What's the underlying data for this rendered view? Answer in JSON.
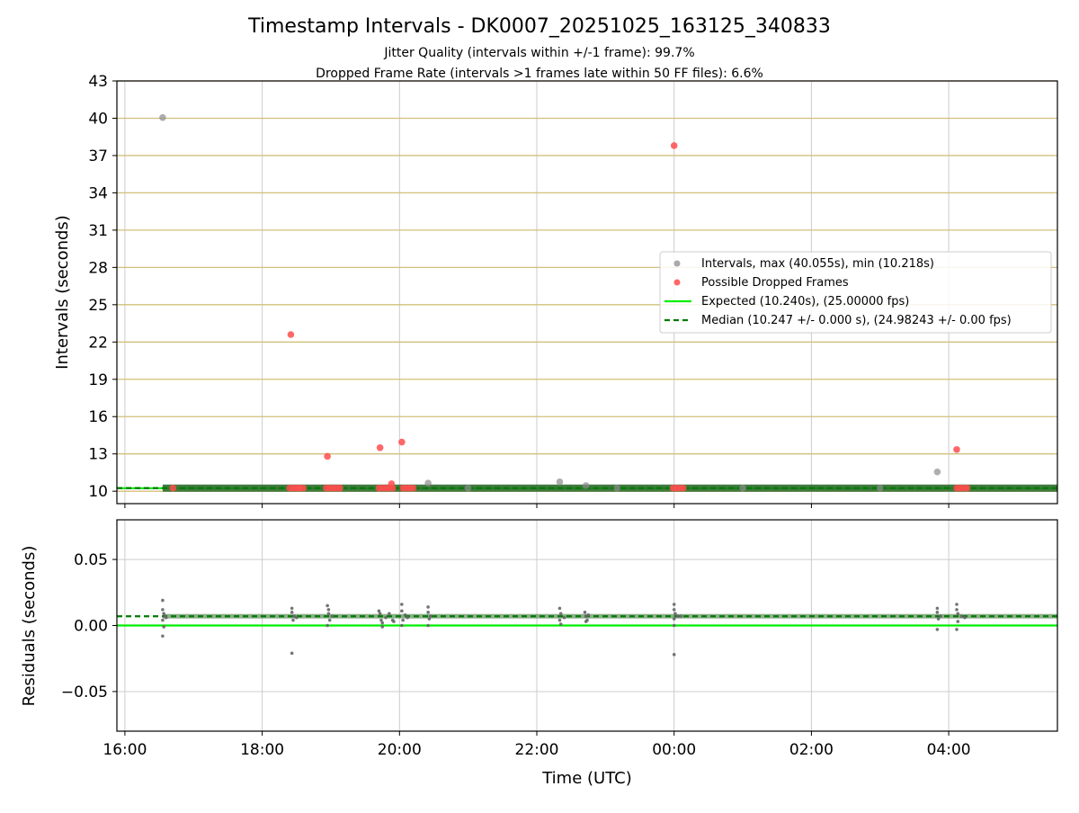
{
  "figure": {
    "title": "Timestamp Intervals - DK0007_20251025_163125_340833",
    "subtitle_1": "Jitter Quality (intervals within +/-1 frame): 99.7%",
    "subtitle_2": "Dropped Frame Rate (intervals >1 frames late within 50 FF files): 6.6%"
  },
  "chart_data": [
    {
      "type": "scatter",
      "panel": "intervals",
      "ylabel": "Intervals (seconds)",
      "ylim": [
        9,
        43
      ],
      "yticks": [
        10,
        13,
        16,
        19,
        22,
        25,
        28,
        31,
        34,
        37,
        40,
        43
      ],
      "grid": "vertical gray at x ticks, horizontal tan at y ticks",
      "legend_position": "center-right",
      "colors": {
        "intervals": "#8c8c8c",
        "dropped": "#ff4d4d",
        "expected": "#00ee00",
        "median": "#007a00",
        "band": "#2e6b2e",
        "hgrid": "#d2c07a",
        "vgrid": "#cccccc"
      },
      "legend": [
        {
          "key": "intervals",
          "label": "Intervals, max (40.055s), min (10.218s)"
        },
        {
          "key": "dropped",
          "label": "Possible Dropped Frames"
        },
        {
          "key": "expected",
          "label": "Expected (10.240s), (25.00000 fps)"
        },
        {
          "key": "median",
          "label": "Median (10.247 +/- 0.000 s), (24.98243 +/- 0.00 fps)"
        }
      ],
      "expected_interval": 10.24,
      "median_interval": 10.247,
      "series": [
        {
          "name": "Intervals, max (40.055s), min (10.218s)",
          "points": [
            {
              "x": "16:33",
              "y": 40.055
            },
            {
              "x": "20:25",
              "y": 10.65
            },
            {
              "x": "22:20",
              "y": 10.75
            },
            {
              "x": "22:43",
              "y": 10.45
            },
            {
              "x": "03:50",
              "y": 11.55
            },
            {
              "x": "18:32",
              "y": 10.25
            },
            {
              "x": "21:00",
              "y": 10.25
            },
            {
              "x": "23:10",
              "y": 10.25
            },
            {
              "x": "01:00",
              "y": 10.25
            },
            {
              "x": "03:00",
              "y": 10.25
            }
          ]
        },
        {
          "name": "Possible Dropped Frames",
          "points": [
            {
              "x": "18:25",
              "y": 22.6
            },
            {
              "x": "18:57",
              "y": 12.8
            },
            {
              "x": "19:43",
              "y": 13.5
            },
            {
              "x": "19:53",
              "y": 10.6
            },
            {
              "x": "20:02",
              "y": 13.95
            },
            {
              "x": "00:00",
              "y": 37.8
            },
            {
              "x": "04:07",
              "y": 13.35
            },
            {
              "x": "16:42",
              "y": 10.25
            },
            {
              "x": "18:24",
              "y": 10.25
            },
            {
              "x": "18:27",
              "y": 10.25
            },
            {
              "x": "18:30",
              "y": 10.25
            },
            {
              "x": "18:33",
              "y": 10.25
            },
            {
              "x": "18:36",
              "y": 10.25
            },
            {
              "x": "18:56",
              "y": 10.25
            },
            {
              "x": "18:59",
              "y": 10.25
            },
            {
              "x": "19:02",
              "y": 10.25
            },
            {
              "x": "19:05",
              "y": 10.25
            },
            {
              "x": "19:08",
              "y": 10.25
            },
            {
              "x": "19:42",
              "y": 10.25
            },
            {
              "x": "19:45",
              "y": 10.25
            },
            {
              "x": "19:48",
              "y": 10.25
            },
            {
              "x": "19:51",
              "y": 10.25
            },
            {
              "x": "19:54",
              "y": 10.25
            },
            {
              "x": "20:03",
              "y": 10.25
            },
            {
              "x": "20:06",
              "y": 10.25
            },
            {
              "x": "20:09",
              "y": 10.25
            },
            {
              "x": "20:12",
              "y": 10.25
            },
            {
              "x": "23:59",
              "y": 10.25
            },
            {
              "x": "00:02",
              "y": 10.25
            },
            {
              "x": "00:05",
              "y": 10.25
            },
            {
              "x": "00:08",
              "y": 10.25
            },
            {
              "x": "04:07",
              "y": 10.25
            },
            {
              "x": "04:10",
              "y": 10.25
            },
            {
              "x": "04:13",
              "y": 10.25
            },
            {
              "x": "04:16",
              "y": 10.25
            }
          ]
        }
      ]
    },
    {
      "type": "scatter",
      "panel": "residuals",
      "xlabel": "Time (UTC)",
      "ylabel": "Residuals (seconds)",
      "ylim": [
        -0.08,
        0.08
      ],
      "yticks": [
        -0.05,
        0.0,
        0.05
      ],
      "ytick_labels": [
        "−0.05",
        "0.00",
        "0.05"
      ],
      "xlim": [
        "15:53",
        "05:35"
      ],
      "xticks": [
        "16:00",
        "18:00",
        "20:00",
        "22:00",
        "00:00",
        "02:00",
        "04:00"
      ],
      "grid": "vertical and horizontal gray",
      "expected_residual": 0.0,
      "median_residual": 0.007,
      "series": [
        {
          "name": "Residuals",
          "points": [
            {
              "x": "16:33",
              "y": 0.019
            },
            {
              "x": "16:33",
              "y": 0.012
            },
            {
              "x": "16:34",
              "y": 0.009
            },
            {
              "x": "16:33",
              "y": 0.004
            },
            {
              "x": "16:34",
              "y": -0.001
            },
            {
              "x": "16:33",
              "y": -0.008
            },
            {
              "x": "16:35",
              "y": 0.007
            },
            {
              "x": "16:36",
              "y": 0.006
            },
            {
              "x": "18:26",
              "y": 0.013
            },
            {
              "x": "18:26",
              "y": 0.01
            },
            {
              "x": "18:27",
              "y": 0.004
            },
            {
              "x": "18:26",
              "y": -0.021
            },
            {
              "x": "18:28",
              "y": 0.007
            },
            {
              "x": "18:30",
              "y": 0.006
            },
            {
              "x": "18:57",
              "y": 0.015
            },
            {
              "x": "18:58",
              "y": 0.012
            },
            {
              "x": "18:58",
              "y": 0.009
            },
            {
              "x": "18:59",
              "y": 0.004
            },
            {
              "x": "18:57",
              "y": 0.0
            },
            {
              "x": "19:01",
              "y": 0.007
            },
            {
              "x": "19:42",
              "y": 0.011
            },
            {
              "x": "19:43",
              "y": 0.009
            },
            {
              "x": "19:44",
              "y": 0.004
            },
            {
              "x": "19:45",
              "y": 0.002
            },
            {
              "x": "19:48",
              "y": 0.006
            },
            {
              "x": "19:51",
              "y": 0.009
            },
            {
              "x": "19:54",
              "y": 0.004
            },
            {
              "x": "19:55",
              "y": 0.003
            },
            {
              "x": "19:45",
              "y": -0.001
            },
            {
              "x": "20:02",
              "y": 0.016
            },
            {
              "x": "20:02",
              "y": 0.011
            },
            {
              "x": "20:03",
              "y": 0.004
            },
            {
              "x": "20:02",
              "y": 0.0
            },
            {
              "x": "20:05",
              "y": 0.008
            },
            {
              "x": "20:07",
              "y": 0.006
            },
            {
              "x": "20:25",
              "y": 0.014
            },
            {
              "x": "20:25",
              "y": 0.01
            },
            {
              "x": "20:26",
              "y": 0.005
            },
            {
              "x": "20:25",
              "y": 0.0
            },
            {
              "x": "20:27",
              "y": 0.007
            },
            {
              "x": "22:20",
              "y": 0.013
            },
            {
              "x": "22:21",
              "y": 0.009
            },
            {
              "x": "22:20",
              "y": 0.004
            },
            {
              "x": "22:21",
              "y": 0.001
            },
            {
              "x": "22:24",
              "y": 0.006
            },
            {
              "x": "22:42",
              "y": 0.01
            },
            {
              "x": "22:43",
              "y": 0.007
            },
            {
              "x": "22:43",
              "y": 0.003
            },
            {
              "x": "22:44",
              "y": 0.004
            },
            {
              "x": "22:45",
              "y": 0.008
            },
            {
              "x": "00:00",
              "y": 0.016
            },
            {
              "x": "00:00",
              "y": 0.012
            },
            {
              "x": "00:01",
              "y": 0.009
            },
            {
              "x": "00:00",
              "y": 0.005
            },
            {
              "x": "00:00",
              "y": 0.0
            },
            {
              "x": "00:00",
              "y": -0.022
            },
            {
              "x": "00:03",
              "y": 0.007
            },
            {
              "x": "00:06",
              "y": 0.007
            },
            {
              "x": "03:50",
              "y": 0.013
            },
            {
              "x": "03:50",
              "y": 0.01
            },
            {
              "x": "03:51",
              "y": 0.005
            },
            {
              "x": "03:50",
              "y": -0.003
            },
            {
              "x": "03:53",
              "y": 0.007
            },
            {
              "x": "04:07",
              "y": 0.016
            },
            {
              "x": "04:07",
              "y": 0.012
            },
            {
              "x": "04:08",
              "y": 0.009
            },
            {
              "x": "04:08",
              "y": 0.003
            },
            {
              "x": "04:07",
              "y": -0.003
            },
            {
              "x": "04:11",
              "y": 0.007
            },
            {
              "x": "04:14",
              "y": 0.006
            }
          ]
        }
      ]
    }
  ]
}
